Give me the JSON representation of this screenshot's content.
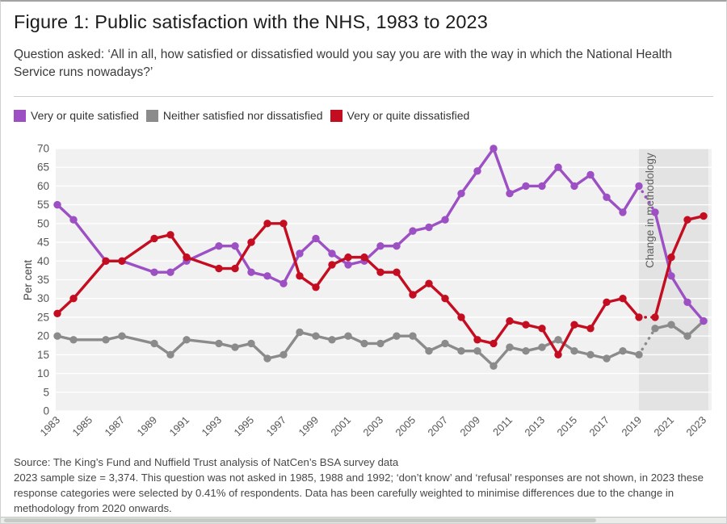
{
  "title": "Figure 1: Public satisfaction with the NHS, 1983 to 2023",
  "subtitle": "Question asked: ‘All in all, how satisfied or dissatisfied would you say you are with the way in which the National Health Service runs nowadays?’",
  "legend": [
    {
      "label": "Very or quite satisfied",
      "color": "#9d50c4"
    },
    {
      "label": "Neither satisfied nor dissatisfied",
      "color": "#8b8b8b"
    },
    {
      "label": "Very or quite dissatisfied",
      "color": "#c40d21"
    }
  ],
  "chart_data": {
    "type": "line",
    "title": "Figure 1: Public satisfaction with the NHS, 1983 to 2023",
    "ylabel": "Per cent",
    "ylim": [
      0,
      70
    ],
    "ytick_step": 5,
    "grid": true,
    "legend_position": "top",
    "xticks": [
      1983,
      1985,
      1987,
      1989,
      1991,
      1993,
      1995,
      1997,
      1999,
      2001,
      2003,
      2005,
      2007,
      2009,
      2011,
      2013,
      2015,
      2017,
      2019,
      2021,
      2023
    ],
    "years": [
      1983,
      1984,
      1986,
      1987,
      1989,
      1990,
      1991,
      1993,
      1994,
      1995,
      1996,
      1997,
      1998,
      1999,
      2000,
      2001,
      2002,
      2003,
      2004,
      2005,
      2006,
      2007,
      2008,
      2009,
      2010,
      2011,
      2012,
      2013,
      2014,
      2015,
      2016,
      2017,
      2018,
      2019,
      2020,
      2021,
      2022,
      2023
    ],
    "years_not_asked": [
      1985,
      1988,
      1992
    ],
    "series": [
      {
        "name": "Neither satisfied nor dissatisfied",
        "color": "#8b8b8b",
        "values": [
          20,
          19,
          19,
          20,
          18,
          15,
          19,
          18,
          17,
          18,
          14,
          15,
          21,
          20,
          19,
          20,
          18,
          18,
          20,
          20,
          16,
          18,
          16,
          16,
          12,
          17,
          16,
          17,
          19,
          16,
          15,
          14,
          16,
          15,
          22,
          23,
          20,
          24
        ]
      },
      {
        "name": "Very or quite satisfied",
        "color": "#9d50c4",
        "values": [
          55,
          51,
          40,
          40,
          37,
          37,
          40,
          44,
          44,
          37,
          36,
          34,
          42,
          46,
          42,
          39,
          40,
          44,
          44,
          48,
          49,
          51,
          58,
          64,
          70,
          58,
          60,
          60,
          65,
          60,
          63,
          57,
          53,
          60,
          53,
          36,
          29,
          24
        ]
      },
      {
        "name": "Very or quite dissatisfied",
        "color": "#c40d21",
        "values": [
          26,
          30,
          40,
          40,
          46,
          47,
          41,
          38,
          38,
          45,
          50,
          50,
          36,
          33,
          39,
          41,
          41,
          37,
          37,
          31,
          34,
          30,
          25,
          19,
          18,
          24,
          23,
          22,
          15,
          23,
          22,
          29,
          30,
          25,
          25,
          41,
          51,
          52
        ]
      }
    ],
    "annotation": {
      "label": "Change in methodology",
      "band_from": 2019,
      "band_to": 2023
    },
    "dashed_segment": [
      2019,
      2020
    ]
  },
  "footer": {
    "source": "Source: The King’s Fund and Nuffield Trust analysis of NatCen’s BSA survey data",
    "note": "2023 sample size = 3,374. This question was not asked in 1985, 1988 and 1992; ‘don’t know’ and ‘refusal’ responses are not shown, in 2023 these response categories were selected by 0.41% of respondents. Data has been carefully weighted to minimise differences due to the change in methodology from 2020 onwards."
  }
}
